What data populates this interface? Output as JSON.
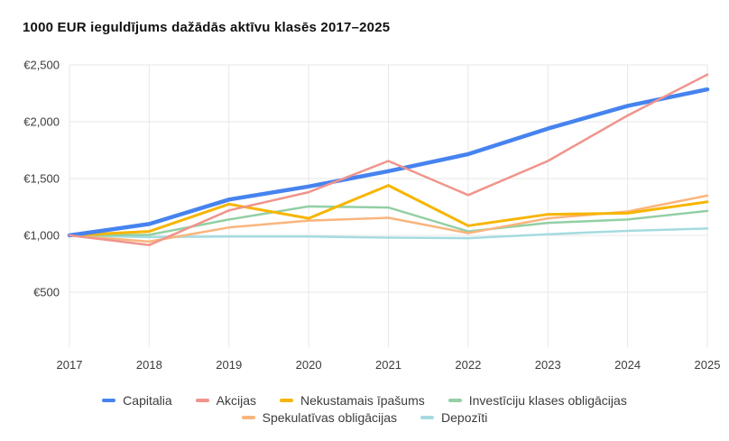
{
  "title": "1000 EUR ieguldījums dažādās aktīvu klasēs 2017–2025",
  "chart_data": {
    "type": "line",
    "x": [
      2017,
      2018,
      2019,
      2020,
      2021,
      2022,
      2023,
      2024,
      2025
    ],
    "series": [
      {
        "name": "Capitalia",
        "color": "#4683ef",
        "stroke_width": 4.5,
        "values": [
          1000,
          1100,
          1315,
          1430,
          1565,
          1715,
          1940,
          2140,
          2285
        ]
      },
      {
        "name": "Akcijas",
        "color": "#f0948c",
        "stroke_width": 2.5,
        "values": [
          1000,
          915,
          1220,
          1380,
          1655,
          1355,
          1655,
          2055,
          2415
        ]
      },
      {
        "name": "Nekustamais īpašums",
        "color": "#f7b500",
        "stroke_width": 3,
        "values": [
          1000,
          1035,
          1275,
          1150,
          1440,
          1085,
          1185,
          1195,
          1295
        ]
      },
      {
        "name": "Investīciju klases obligācijas",
        "color": "#93cfa4",
        "stroke_width": 2.5,
        "values": [
          1000,
          1005,
          1140,
          1255,
          1245,
          1035,
          1110,
          1140,
          1215
        ]
      },
      {
        "name": "Spekulatīvas obligācijas",
        "color": "#fab57d",
        "stroke_width": 2.5,
        "values": [
          1000,
          945,
          1070,
          1130,
          1155,
          1020,
          1150,
          1210,
          1350
        ]
      },
      {
        "name": "Depozīti",
        "color": "#a5dbe0",
        "stroke_width": 2.5,
        "values": [
          1000,
          985,
          990,
          990,
          980,
          975,
          1010,
          1040,
          1060
        ]
      }
    ],
    "draw_order": [
      5,
      3,
      4,
      2,
      0,
      1
    ],
    "y_ticks": [
      500,
      1000,
      1500,
      2000,
      2500
    ],
    "y_tick_labels": [
      "€500",
      "€1,000",
      "€1,500",
      "€2,000",
      "€2,500"
    ],
    "x_tick_labels": [
      "2017",
      "2018",
      "2019",
      "2020",
      "2021",
      "2022",
      "2023",
      "2024",
      "2025"
    ],
    "ylim": [
      500,
      2500
    ],
    "grid": true,
    "grid_color": "#e7e7e7",
    "legend_position": "bottom",
    "legend_rows": [
      [
        "Capitalia",
        "Akcijas",
        "Nekustamais īpašums",
        "Investīciju klases obligācijas"
      ],
      [
        "Spekulatīvas obligācijas",
        "Depozīti"
      ]
    ]
  }
}
